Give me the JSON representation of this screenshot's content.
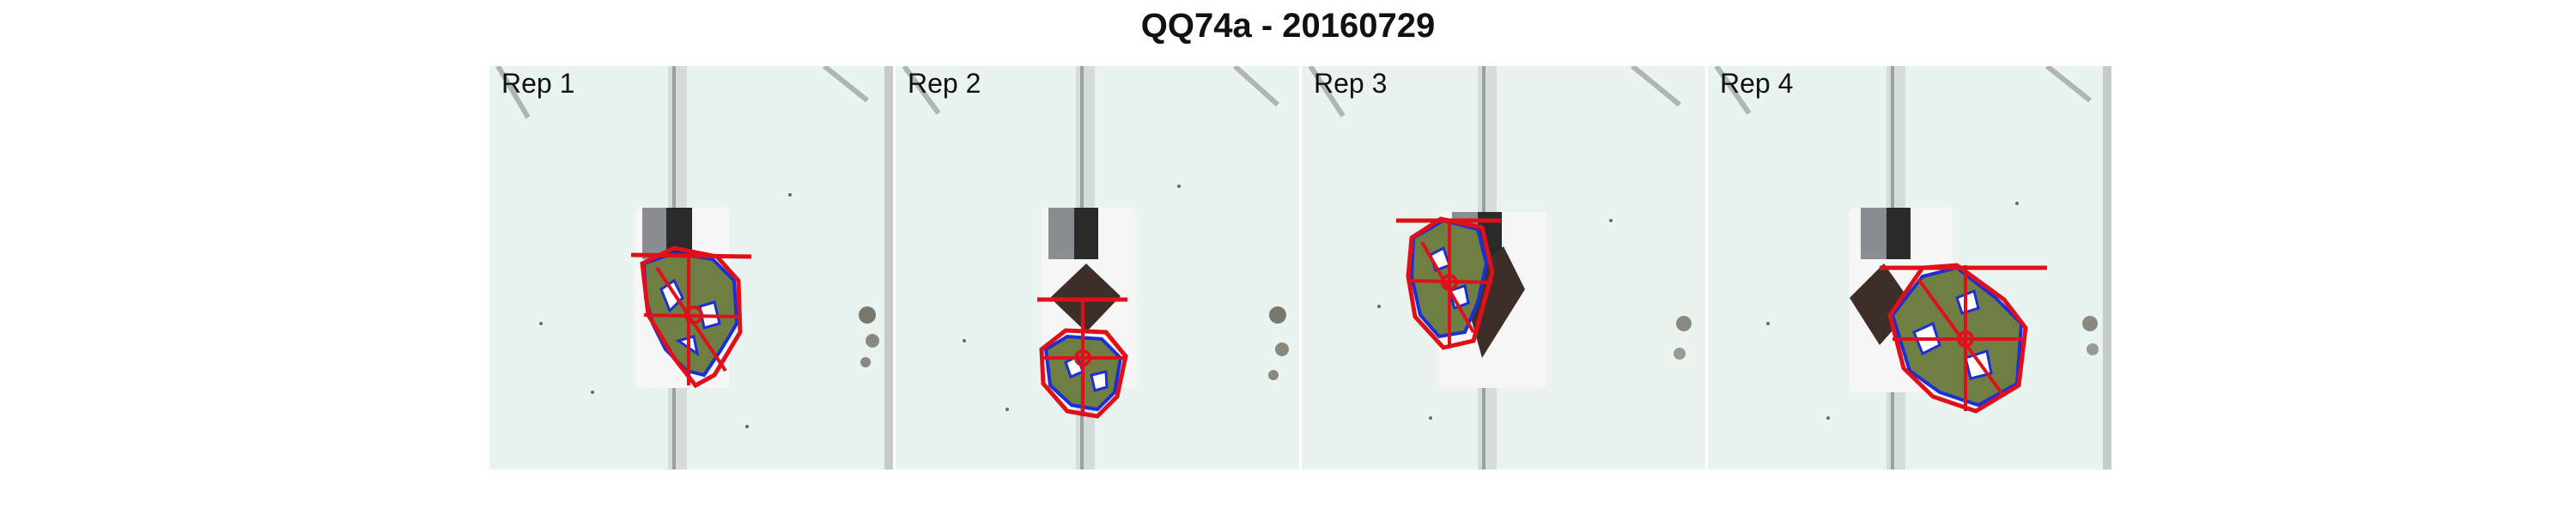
{
  "figure": {
    "title": "QQ74a - 20160729"
  },
  "panels": [
    {
      "label": "Rep 1"
    },
    {
      "label": "Rep 2"
    },
    {
      "label": "Rep 3"
    },
    {
      "label": "Rep 4"
    }
  ],
  "colors": {
    "background_photo": "#e2f0ec",
    "rail": "#c8cfcd",
    "pot_white": "#f6f6f6",
    "card_gray": "#8a8e92",
    "card_black": "#2a2a2a",
    "plant": "#6f7f44",
    "soil": "#3d2f28",
    "contour": "#1a2fd6",
    "hull": "#e0101a",
    "debris": "#4a4236"
  }
}
